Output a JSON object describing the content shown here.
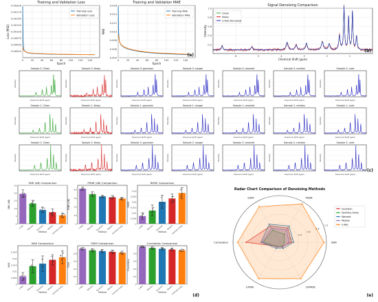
{
  "panel_labels": [
    "(a)",
    "(b)",
    "(c)",
    "(d)",
    "(e)"
  ],
  "chart_data": [
    {
      "id": "loss",
      "type": "line",
      "title": "Training and Validation Loss",
      "xlabel": "Epoch",
      "ylabel": "Loss (MSE)",
      "xlim": [
        0,
        160
      ],
      "ylim": [
        0,
        0.002
      ],
      "xticks": [
        0,
        20,
        40,
        60,
        80,
        100,
        120,
        140
      ],
      "yticks": [
        0.00025,
        0.0005,
        0.00075,
        0.001,
        0.00125,
        0.0015,
        0.00175,
        0.002
      ],
      "ytick_labels": [
        "0.00025",
        "0.00050",
        "0.00075",
        "0.00100",
        "0.00125",
        "0.00150",
        "0.00175",
        "0.00200"
      ],
      "legend": "top-right",
      "series": [
        {
          "name": "Training Loss",
          "color": "#1f77b4",
          "x": [
            0,
            1,
            2,
            3,
            5,
            8,
            12,
            20,
            30,
            45,
            60,
            80,
            100,
            120,
            140,
            150
          ],
          "y": [
            0.00195,
            0.0006,
            0.00035,
            0.00028,
            0.00024,
            0.0002,
            0.00018,
            0.00016,
            0.00015,
            0.00014,
            0.00013,
            0.000125,
            0.00012,
            0.000118,
            0.000115,
            0.000113
          ]
        },
        {
          "name": "Validation Loss",
          "color": "#ff7f0e",
          "x": [
            0,
            1,
            2,
            3,
            5,
            8,
            12,
            20,
            30,
            45,
            60,
            80,
            100,
            120,
            140,
            150
          ],
          "y": [
            0.0004,
            0.00033,
            0.00028,
            0.00026,
            0.00024,
            0.00021,
            0.00019,
            0.00017,
            0.00016,
            0.00015,
            0.00014,
            0.00013,
            0.000125,
            0.00012,
            0.000118,
            0.000116
          ]
        }
      ]
    },
    {
      "id": "mae",
      "type": "line",
      "title": "Training and Validation MAE",
      "xlabel": "Epoch",
      "ylabel": "MAE",
      "xlim": [
        0,
        160
      ],
      "ylim": [
        0.004,
        0.016
      ],
      "xticks": [
        0,
        20,
        40,
        60,
        80,
        100,
        120,
        140
      ],
      "yticks": [
        0.004,
        0.006,
        0.008,
        0.01,
        0.012,
        0.014,
        0.016
      ],
      "ytick_labels": [
        "0.004",
        "0.006",
        "0.008",
        "0.010",
        "0.012",
        "0.014",
        "0.016"
      ],
      "legend": "top-right",
      "series": [
        {
          "name": "Training MAE",
          "color": "#1f77b4",
          "x": [
            0,
            1,
            2,
            3,
            5,
            8,
            12,
            20,
            30,
            45,
            60,
            80,
            100,
            120,
            140,
            150
          ],
          "y": [
            0.0158,
            0.0095,
            0.0082,
            0.0076,
            0.0071,
            0.0067,
            0.0064,
            0.006,
            0.0057,
            0.0054,
            0.0052,
            0.005,
            0.0049,
            0.0048,
            0.0047,
            0.0047
          ]
        },
        {
          "name": "Validation MAE",
          "color": "#ff7f0e",
          "x": [
            0,
            1,
            2,
            3,
            5,
            8,
            12,
            20,
            30,
            45,
            60,
            80,
            100,
            120,
            140,
            150
          ],
          "y": [
            0.0093,
            0.0086,
            0.008,
            0.0076,
            0.0072,
            0.0068,
            0.0065,
            0.0061,
            0.0058,
            0.0055,
            0.0053,
            0.0051,
            0.005,
            0.0049,
            0.0048,
            0.0048
          ]
        }
      ]
    },
    {
      "id": "signal",
      "type": "line",
      "title": "Signal Denoising Comparison",
      "xlabel": "Chemical Shift (ppm)",
      "ylabel": "Intensity",
      "xlim": [
        7,
        0
      ],
      "ylim": [
        0,
        1.0
      ],
      "xticks": [
        6,
        5,
        4,
        3,
        2,
        1
      ],
      "yticks": [
        0.2,
        0.4,
        0.6,
        0.8,
        1.0
      ],
      "legend": "top-left",
      "legend_entries": [
        "Clean",
        "Noisy",
        "U-Net Denoised"
      ],
      "colors": {
        "clean": "#2ca02c",
        "noisy": "#d62728",
        "denoised": "#1f1fbf"
      },
      "baseline": 0.08,
      "peaks": [
        {
          "ppm": 6.6,
          "h": 0.1,
          "w": 0.03
        },
        {
          "ppm": 5.3,
          "h": 0.07,
          "w": 0.04
        },
        {
          "ppm": 3.75,
          "h": 0.17,
          "w": 0.05
        },
        {
          "ppm": 3.35,
          "h": 0.1,
          "w": 0.05
        },
        {
          "ppm": 2.9,
          "h": 0.15,
          "w": 0.04
        },
        {
          "ppm": 2.2,
          "h": 0.18,
          "w": 0.05
        },
        {
          "ppm": 1.9,
          "h": 0.13,
          "w": 0.04
        },
        {
          "ppm": 1.45,
          "h": 0.32,
          "w": 0.035
        },
        {
          "ppm": 1.25,
          "h": 0.95,
          "w": 0.025
        },
        {
          "ppm": 1.05,
          "h": 0.72,
          "w": 0.025
        },
        {
          "ppm": 0.88,
          "h": 0.85,
          "w": 0.025
        },
        {
          "ppm": 0.7,
          "h": 0.3,
          "w": 0.03
        }
      ]
    },
    {
      "id": "samples",
      "type": "line",
      "grid_rows": 3,
      "grid_cols": 7,
      "xlabel": "Chemical Shift (ppm)",
      "ylabel": "Intensity",
      "xlim": [
        6,
        0
      ],
      "ylim": [
        0,
        1.0
      ],
      "row_prefix": [
        "Sample 0:",
        "Sample 1:",
        "Sample 2:"
      ],
      "columns": [
        {
          "name": "Clean",
          "color": "#2ca02c"
        },
        {
          "name": "Noisy",
          "color": "#d62728"
        },
        {
          "name": "gaussian",
          "color": "#1f1fbf"
        },
        {
          "name": "savgol",
          "color": "#1f1fbf"
        },
        {
          "name": "wavelet",
          "color": "#1f1fbf"
        },
        {
          "name": "median",
          "color": "#1f1fbf"
        },
        {
          "name": "unet",
          "color": "#1f1fbf"
        }
      ],
      "row_peaks": [
        [
          {
            "ppm": 3.6,
            "h": 0.15,
            "w": 0.05
          },
          {
            "ppm": 2.7,
            "h": 0.25,
            "w": 0.05
          },
          {
            "ppm": 2.1,
            "h": 0.35,
            "w": 0.04
          },
          {
            "ppm": 1.4,
            "h": 0.45,
            "w": 0.04
          },
          {
            "ppm": 1.1,
            "h": 0.95,
            "w": 0.03
          },
          {
            "ppm": 0.9,
            "h": 0.6,
            "w": 0.03
          }
        ],
        [
          {
            "ppm": 4.0,
            "h": 0.12,
            "w": 0.05
          },
          {
            "ppm": 3.1,
            "h": 0.2,
            "w": 0.05
          },
          {
            "ppm": 2.3,
            "h": 0.45,
            "w": 0.04
          },
          {
            "ppm": 1.6,
            "h": 0.85,
            "w": 0.03
          },
          {
            "ppm": 1.2,
            "h": 0.55,
            "w": 0.03
          },
          {
            "ppm": 0.8,
            "h": 0.4,
            "w": 0.03
          }
        ],
        [
          {
            "ppm": 3.8,
            "h": 0.2,
            "w": 0.05
          },
          {
            "ppm": 2.9,
            "h": 0.3,
            "w": 0.05
          },
          {
            "ppm": 2.0,
            "h": 0.5,
            "w": 0.04
          },
          {
            "ppm": 1.5,
            "h": 0.95,
            "w": 0.03
          },
          {
            "ppm": 1.1,
            "h": 0.7,
            "w": 0.03
          },
          {
            "ppm": 0.7,
            "h": 0.35,
            "w": 0.03
          }
        ]
      ]
    },
    {
      "id": "bars",
      "type": "bar",
      "xlabel": "Method",
      "categories": [
        "U-Net",
        "Wavelet",
        "Gaussian",
        "Median",
        "Savitzky-Golay"
      ],
      "colors": [
        "#9467bd",
        "#2ca02c",
        "#1f77b4",
        "#d62728",
        "#ff7f0e"
      ],
      "panels": [
        {
          "title": "SNR (dB) Comparison",
          "ylabel": "SNR (dB)",
          "ylim": [
            0,
            25
          ],
          "yticks": [
            0,
            5,
            10,
            15,
            20,
            25
          ],
          "values": [
            19.5,
            13.2,
            9.0,
            7.5,
            5.5
          ],
          "errors": [
            2.5,
            2.0,
            1.8,
            2.2,
            1.5
          ]
        },
        {
          "title": "PSNR (dB) Comparison",
          "ylabel": "PSNR (dB)",
          "ylim": [
            0,
            45
          ],
          "yticks": [
            0,
            10,
            20,
            30,
            40
          ],
          "values": [
            41.0,
            34.5,
            32.0,
            31.0,
            29.5
          ],
          "errors": [
            2.0,
            3.0,
            1.5,
            2.0,
            1.5
          ]
        },
        {
          "title": "RMSE Comparison",
          "ylabel": "RMSE",
          "ylim": [
            0,
            0.035
          ],
          "yticks": [
            0,
            0.005,
            0.01,
            0.015,
            0.02,
            0.025,
            0.03
          ],
          "values": [
            0.007,
            0.012,
            0.02,
            0.023,
            0.028
          ],
          "errors": [
            0.003,
            0.005,
            0.006,
            0.004,
            0.005
          ]
        },
        {
          "title": "MAE Comparison",
          "ylabel": "MAE",
          "ylim": [
            0,
            0.03
          ],
          "yticks": [
            0,
            0.005,
            0.01,
            0.015,
            0.02,
            0.025
          ],
          "values": [
            0.006,
            0.014,
            0.016,
            0.019,
            0.021
          ],
          "errors": [
            0.003,
            0.005,
            0.006,
            0.004,
            0.005
          ]
        },
        {
          "title": "SSIM Comparison",
          "ylabel": "SSIM",
          "ylim": [
            0,
            1.0
          ],
          "yticks": [
            0,
            0.2,
            0.4,
            0.6,
            0.8
          ],
          "values": [
            0.92,
            0.88,
            0.86,
            0.84,
            0.82
          ],
          "errors": [
            0.03,
            0.04,
            0.04,
            0.05,
            0.04
          ]
        },
        {
          "title": "Correlation Comparison",
          "ylabel": "Correlation",
          "ylim": [
            0,
            1.0
          ],
          "yticks": [
            0,
            0.2,
            0.4,
            0.6,
            0.8
          ],
          "values": [
            0.97,
            0.94,
            0.92,
            0.9,
            0.88
          ],
          "errors": [
            0.02,
            0.03,
            0.03,
            0.04,
            0.03
          ]
        }
      ]
    },
    {
      "id": "radar",
      "type": "radar",
      "title": "Radar Chart Comparison of Denoising Methods",
      "axes": [
        "SNR",
        "PSNR",
        "SSIM",
        "Correlation",
        "1/MAE",
        "1/RMSE"
      ],
      "rticks": [
        0.2,
        0.4,
        0.6,
        0.8,
        1.0
      ],
      "rtick_labels": [
        "0.2",
        "0.4",
        "0.6",
        "0.8",
        "1.0"
      ],
      "legend": "top-right",
      "series": [
        {
          "name": "Gaussian",
          "color": "#d62728",
          "values": [
            0.25,
            0.35,
            0.4,
            0.72,
            0.1,
            0.1
          ]
        },
        {
          "name": "Savitzky-Golay",
          "color": "#2ca02c",
          "values": [
            0.1,
            0.2,
            0.3,
            0.35,
            0.1,
            0.1
          ]
        },
        {
          "name": "Wavelet",
          "color": "#1f77b4",
          "values": [
            0.3,
            0.4,
            0.45,
            0.4,
            0.15,
            0.15
          ]
        },
        {
          "name": "Median",
          "color": "#9467bd",
          "values": [
            0.2,
            0.3,
            0.35,
            0.38,
            0.12,
            0.12
          ]
        },
        {
          "name": "U-Net",
          "color": "#ff7f0e",
          "values": [
            0.95,
            0.95,
            0.88,
            0.9,
            0.9,
            0.9
          ]
        }
      ]
    }
  ]
}
